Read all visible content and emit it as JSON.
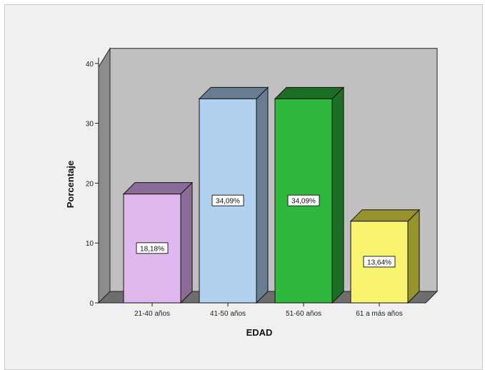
{
  "chart_data": {
    "type": "bar",
    "categories": [
      "21-40 años",
      "41-50 años",
      "51-60 años",
      "61 a más años"
    ],
    "values": [
      18.18,
      34.09,
      34.09,
      13.64
    ],
    "data_labels": [
      "18,18%",
      "34,09%",
      "34,09%",
      "13,64%"
    ],
    "xlabel": "EDAD",
    "ylabel": "Porcentaje",
    "ylim": [
      0,
      40
    ],
    "yticks": [
      "0",
      "10",
      "20",
      "30",
      "40"
    ],
    "three_d": true,
    "grid": false,
    "colors": {
      "wall": "#c0c0c0",
      "wall_side": "#8c8c8c",
      "floor": "#6e6e6e",
      "bars": [
        "#e0b8f0",
        "#b0d2f0",
        "#2eb83e",
        "#f8f470"
      ],
      "bar_tops": [
        "#8a6c96",
        "#6a7c92",
        "#1c6e24",
        "#96922c"
      ],
      "bar_sides": [
        "#8a6c96",
        "#6a7c92",
        "#1c6e24",
        "#96922c"
      ]
    }
  }
}
